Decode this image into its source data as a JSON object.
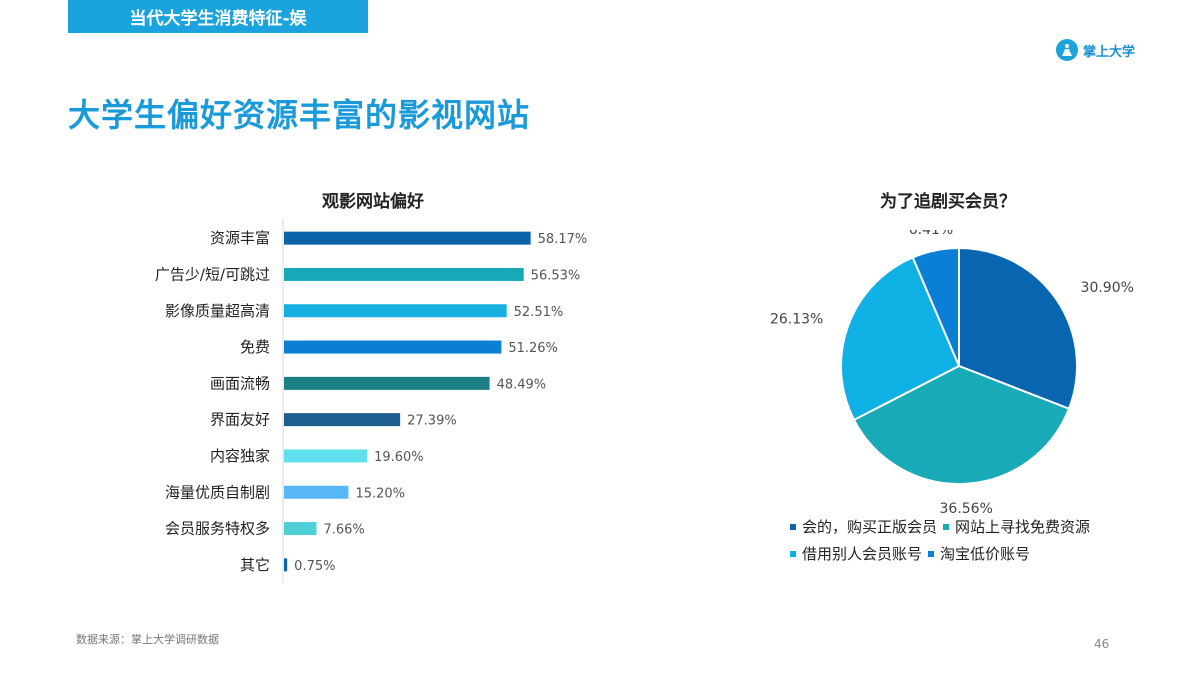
{
  "header": {
    "tag": "当代大学生消费特征-娱"
  },
  "logo": {
    "text": "掌上大学"
  },
  "page_title": "大学生偏好资源丰富的影视网站",
  "footer": {
    "source": "数据来源：掌上大学调研数据",
    "page_number": "46"
  },
  "chart_data": [
    {
      "type": "bar",
      "orientation": "horizontal",
      "title": "观影网站偏好",
      "categories": [
        "资源丰富",
        "广告少/短/可跳过",
        "影像质量超高清",
        "免费",
        "画面流畅",
        "界面友好",
        "内容独家",
        "海量优质自制剧",
        "会员服务特权多",
        "其它"
      ],
      "values": [
        58.17,
        56.53,
        52.51,
        51.26,
        48.49,
        27.39,
        19.6,
        15.2,
        7.66,
        0.75
      ],
      "value_labels": [
        "58.17%",
        "56.53%",
        "52.51%",
        "51.26%",
        "48.49%",
        "27.39%",
        "19.60%",
        "15.20%",
        "7.66%",
        "0.75%"
      ],
      "colors": [
        "#0b63a8",
        "#18a9b8",
        "#17b0e0",
        "#0a7fd4",
        "#1d7f86",
        "#1c5f8f",
        "#5fe0ec",
        "#58b8f5",
        "#4fcfd6",
        "#0b63a8"
      ],
      "xlim": [
        0,
        100
      ],
      "grid": false,
      "xlabel": "",
      "ylabel": ""
    },
    {
      "type": "pie",
      "title": "为了追剧买会员？",
      "categories": [
        "会的，购买正版会员",
        "网站上寻找免费资源",
        "借用别人会员账号",
        "淘宝低价账号"
      ],
      "values": [
        30.9,
        36.56,
        26.13,
        6.41
      ],
      "value_labels": [
        "30.90%",
        "36.56%",
        "26.13%",
        "6.41%"
      ],
      "colors": [
        "#0866b0",
        "#18aab7",
        "#0fb0e3",
        "#0a7fd6"
      ],
      "legend_position": "bottom"
    }
  ]
}
